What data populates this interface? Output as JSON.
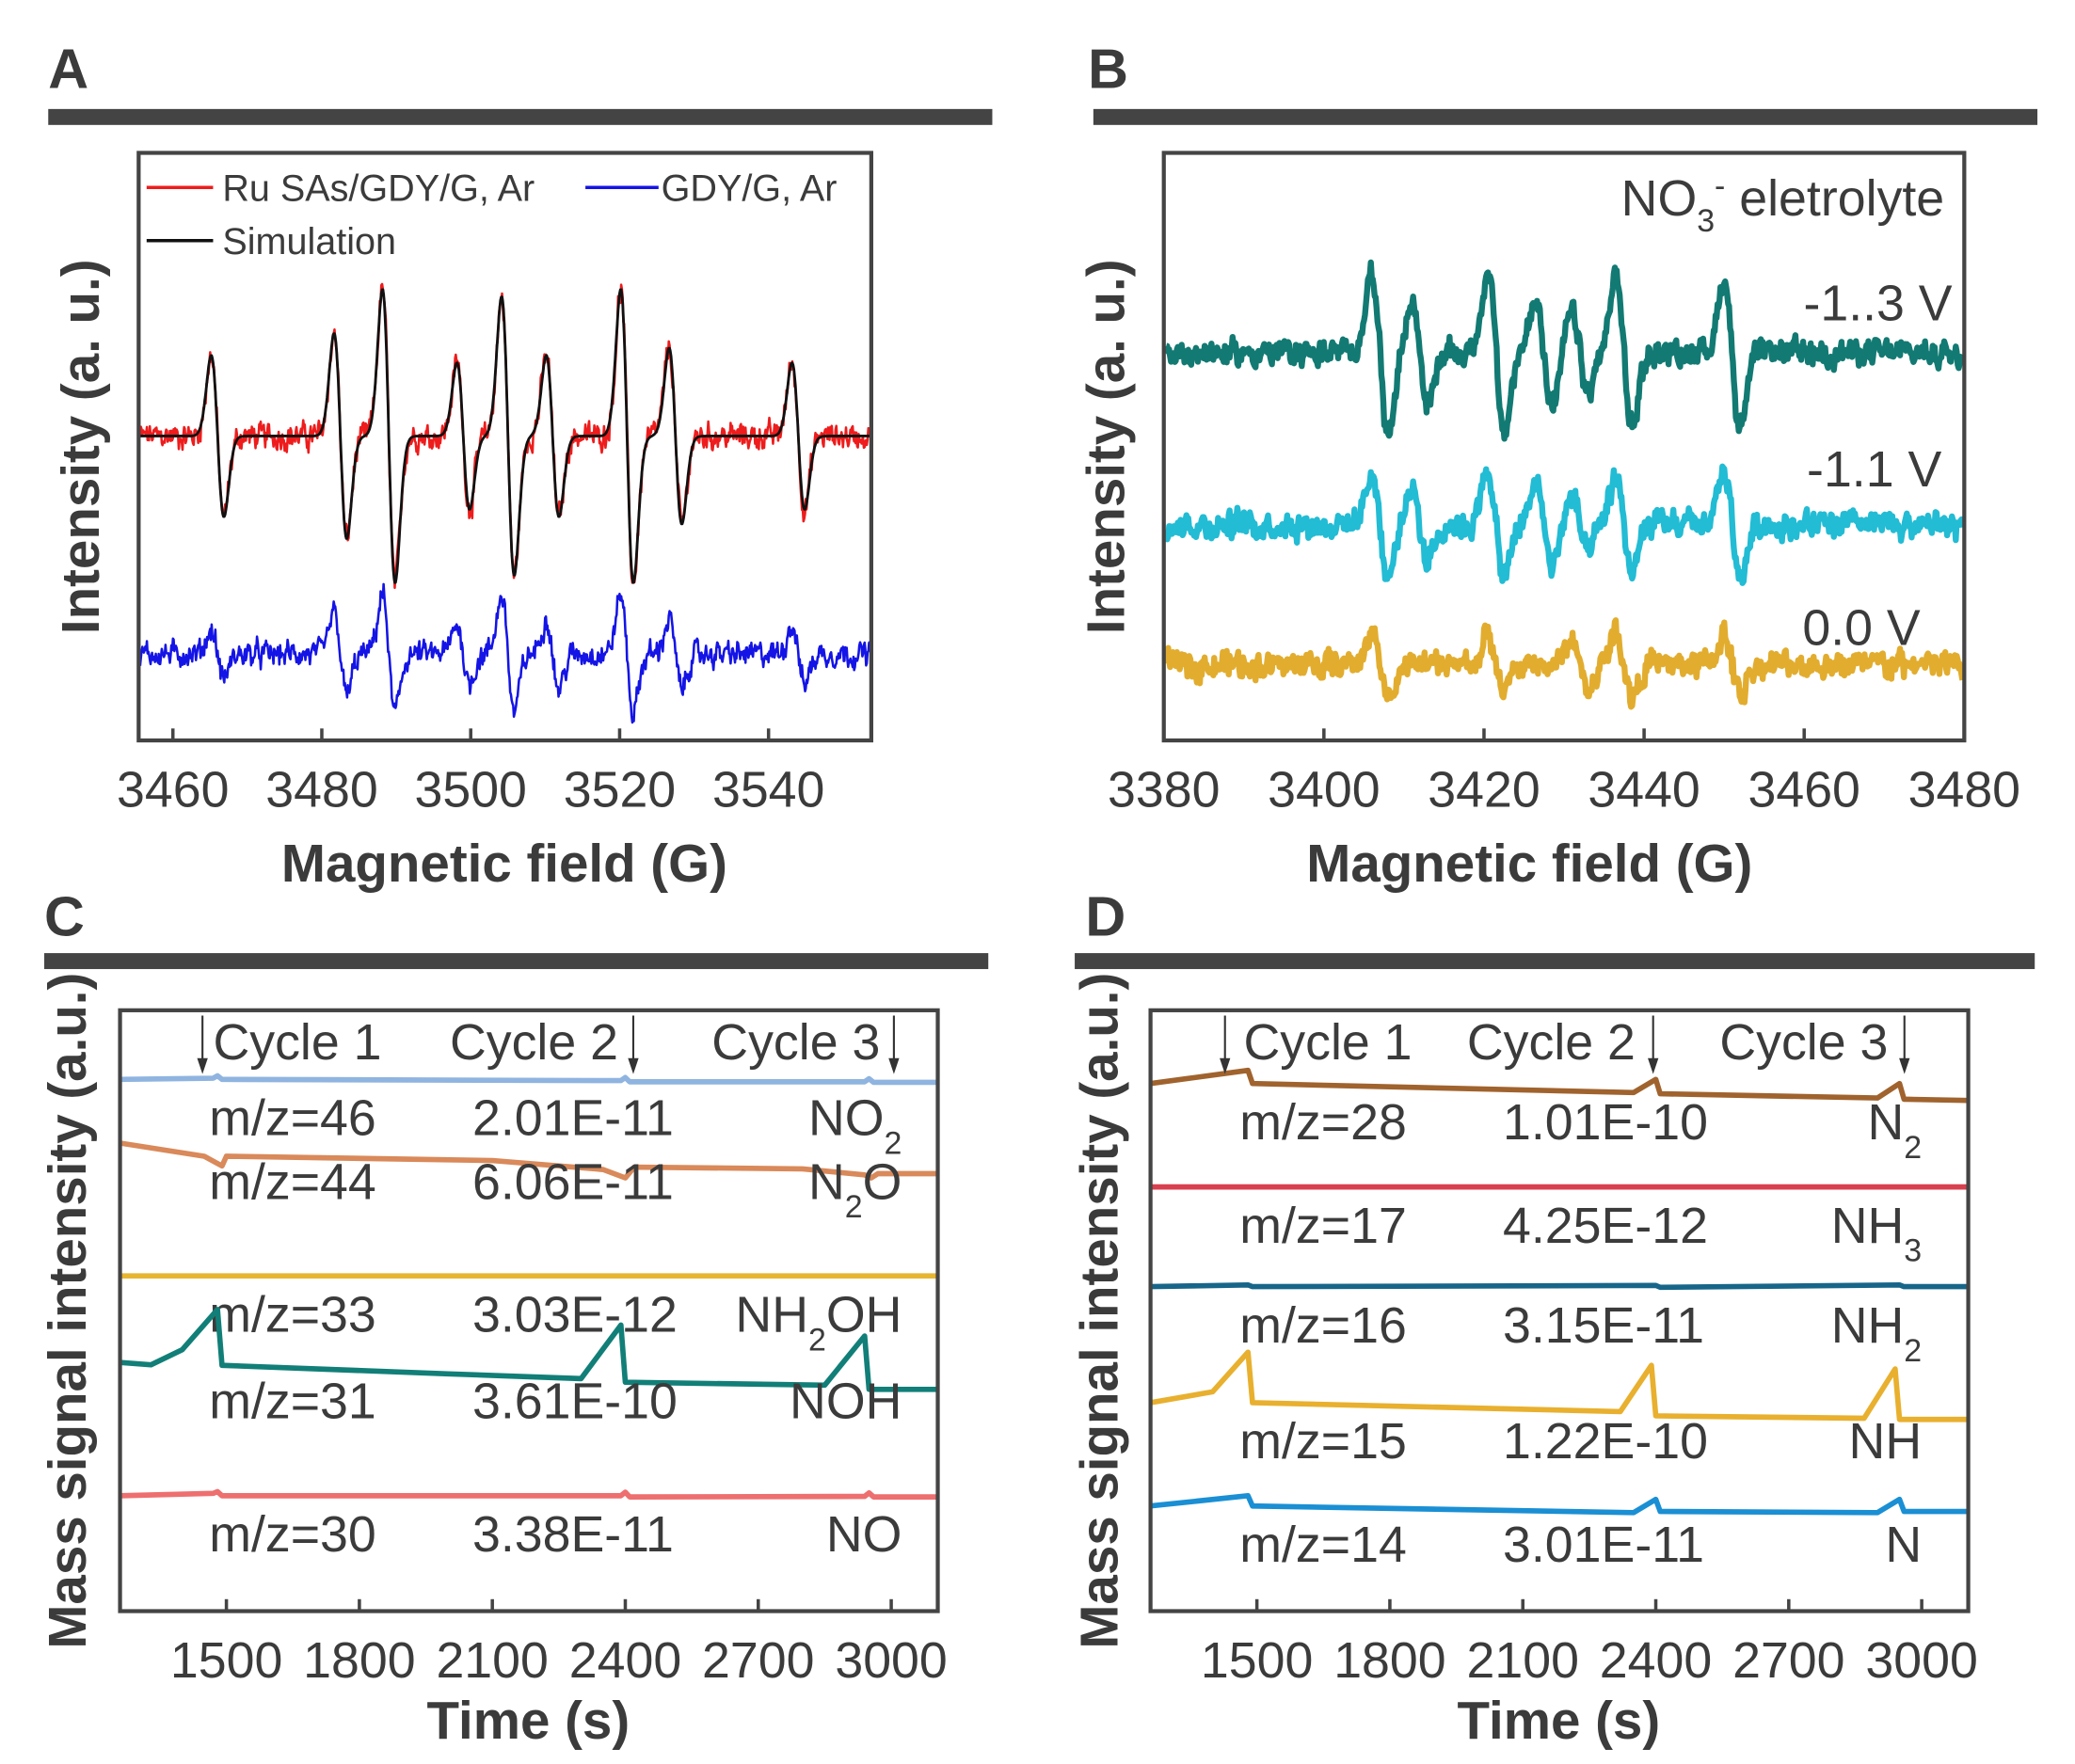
{
  "panels": {
    "A": "A",
    "B": "B",
    "C": "C",
    "D": "D"
  },
  "chart_data": [
    {
      "type": "line",
      "panel": "A",
      "xlabel": "Magnetic field (G)",
      "ylabel": "Intensity (a. u.)",
      "xlim": [
        3455.4,
        3553.8
      ],
      "ylim": [
        0,
        100
      ],
      "xticks": [
        "3460",
        "3480",
        "3500",
        "3520",
        "3540"
      ],
      "legend": [
        "Ru SAs/GDY/G, Ar",
        "GDY/G, Ar",
        "Simulation"
      ],
      "legend_position": "top",
      "series": [
        {
          "name": "Ru SAs/GDY/G, Ar",
          "color": "#ee1c1c",
          "baseline": 51.8,
          "noise": 3.2,
          "lines": [
            [
              3466,
              0.55
            ],
            [
              3482.5,
              0.7
            ],
            [
              3489,
              1.0
            ],
            [
              3499,
              0.5
            ],
            [
              3505,
              0.95
            ],
            [
              3511,
              0.55
            ],
            [
              3521,
              1.0
            ],
            [
              3527.5,
              0.6
            ],
            [
              3544,
              0.5
            ]
          ],
          "amplitude": 25
        },
        {
          "name": "GDY/G, Ar",
          "color": "#1414e6",
          "baseline": 14.7,
          "noise": 3.0,
          "lines": [
            [
              3466,
              0.4
            ],
            [
              3482.5,
              0.7
            ],
            [
              3489,
              1.0
            ],
            [
              3499,
              0.5
            ],
            [
              3505,
              1.0
            ],
            [
              3511,
              0.6
            ],
            [
              3521,
              1.0
            ],
            [
              3527.5,
              0.6
            ],
            [
              3544,
              0.5
            ]
          ],
          "amplitude": 10
        },
        {
          "name": "Simulation",
          "color": "#111111",
          "baseline": 51.8,
          "noise": 0,
          "lines": [
            [
              3466,
              0.55
            ],
            [
              3482.5,
              0.7
            ],
            [
              3489,
              1.0
            ],
            [
              3499,
              0.5
            ],
            [
              3505,
              0.95
            ],
            [
              3511,
              0.55
            ],
            [
              3521,
              1.0
            ],
            [
              3527.5,
              0.6
            ],
            [
              3544,
              0.5
            ]
          ],
          "amplitude": 25
        }
      ]
    },
    {
      "type": "line",
      "panel": "B",
      "xlabel": "Magnetic field (G)",
      "ylabel": "Intensity (a. u.)",
      "xlim": [
        3380,
        3480
      ],
      "ylim": [
        0,
        100
      ],
      "xticks": [
        "3380",
        "3400",
        "3420",
        "3440",
        "3460",
        "3480"
      ],
      "annotation": {
        "main": "NO",
        "sub": "3",
        "sup": "-",
        "rest": " eletrolyte"
      },
      "series": [
        {
          "name": "-1..3 V",
          "color": "#127a73",
          "baseline": 66,
          "noise": 3.0,
          "amplitude": 14,
          "lines": [
            [
              3407,
              1.0
            ],
            [
              3412,
              0.6
            ],
            [
              3421.5,
              1.0
            ],
            [
              3427.5,
              0.7
            ],
            [
              3432,
              0.5
            ],
            [
              3437.5,
              0.9
            ],
            [
              3451,
              0.9
            ]
          ]
        },
        {
          "name": "-1.1 V",
          "color": "#22bcd4",
          "baseline": 36.7,
          "noise": 3.2,
          "amplitude": 10,
          "lines": [
            [
              3407,
              0.9
            ],
            [
              3412,
              0.6
            ],
            [
              3421.5,
              0.9
            ],
            [
              3427.5,
              0.7
            ],
            [
              3432,
              0.5
            ],
            [
              3437.5,
              0.8
            ],
            [
              3451,
              0.9
            ]
          ]
        },
        {
          "name": "0.0 V",
          "color": "#e2ad2e",
          "baseline": 12.9,
          "noise": 3.2,
          "amplitude": 6,
          "lines": [
            [
              3407,
              0.9
            ],
            [
              3421.5,
              0.8
            ],
            [
              3432,
              0.7
            ],
            [
              3437.5,
              0.9
            ],
            [
              3451,
              0.8
            ]
          ]
        }
      ]
    },
    {
      "type": "line",
      "panel": "C",
      "xlabel": "Time (s)",
      "ylabel": "Mass signal intensity (a.u.)",
      "xlim": [
        1260,
        3105
      ],
      "ylim": [
        0,
        100
      ],
      "xticks": [
        "1500",
        "1800",
        "2100",
        "2400",
        "2700",
        "3000"
      ],
      "cycles": [
        "Cycle 1",
        "Cycle 2",
        "Cycle 3"
      ],
      "cycle_markers": [
        1446,
        2418,
        3006
      ],
      "series": [
        {
          "mz": "m/z=46",
          "value": "2.01E-11",
          "species": {
            "main": "NO",
            "sub": "2",
            "rest": ""
          },
          "color": "#8fb4e0",
          "points": [
            [
              1260,
              88.5
            ],
            [
              1470,
              88.7
            ],
            [
              1480,
              89.1
            ],
            [
              1490,
              88.5
            ],
            [
              2390,
              88.3
            ],
            [
              2400,
              88.8
            ],
            [
              2410,
              88.1
            ],
            [
              2940,
              88.1
            ],
            [
              2950,
              88.6
            ],
            [
              2960,
              88.0
            ],
            [
              3105,
              88.0
            ]
          ]
        },
        {
          "mz": "m/z=44",
          "value": "6.06E-11",
          "species": {
            "main": "N",
            "sub": "2",
            "rest": "O"
          },
          "color": "#d9895a",
          "points": [
            [
              1260,
              77.9
            ],
            [
              1450,
              75.7
            ],
            [
              1490,
              74.1
            ],
            [
              1500,
              75.7
            ],
            [
              2100,
              75.0
            ],
            [
              2350,
              73.5
            ],
            [
              2400,
              72.1
            ],
            [
              2420,
              73.9
            ],
            [
              2800,
              73.6
            ],
            [
              2940,
              72.6
            ],
            [
              2955,
              72.1
            ],
            [
              2970,
              72.8
            ],
            [
              3105,
              72.8
            ]
          ]
        },
        {
          "mz": "m/z=33",
          "value": "3.03E-12",
          "species": {
            "main": "NH",
            "sub": "2",
            "rest": "OH"
          },
          "color": "#e6b531",
          "points": [
            [
              1260,
              55.8
            ],
            [
              3105,
              55.8
            ]
          ]
        },
        {
          "mz": "m/z=31",
          "value": "3.61E-10",
          "species": {
            "main": "NOH",
            "sub": "",
            "rest": ""
          },
          "color": "#117f78",
          "points": [
            [
              1260,
              41.4
            ],
            [
              1330,
              41.0
            ],
            [
              1400,
              43.5
            ],
            [
              1480,
              50.2
            ],
            [
              1490,
              40.9
            ],
            [
              2000,
              39.5
            ],
            [
              2300,
              38.7
            ],
            [
              2390,
              47.6
            ],
            [
              2400,
              38.1
            ],
            [
              2850,
              37.6
            ],
            [
              2940,
              45.8
            ],
            [
              2950,
              36.9
            ],
            [
              3105,
              36.9
            ]
          ]
        },
        {
          "mz": "m/z=30",
          "value": "3.38E-11",
          "species": {
            "main": "NO",
            "sub": "",
            "rest": ""
          },
          "color": "#ee6f6f",
          "points": [
            [
              1260,
              19.2
            ],
            [
              1470,
              19.6
            ],
            [
              1480,
              19.9
            ],
            [
              1490,
              19.2
            ],
            [
              2390,
              19.2
            ],
            [
              2400,
              19.8
            ],
            [
              2410,
              19.0
            ],
            [
              2940,
              19.1
            ],
            [
              2950,
              19.7
            ],
            [
              2960,
              19.0
            ],
            [
              3105,
              19.0
            ]
          ]
        }
      ]
    },
    {
      "type": "line",
      "panel": "D",
      "xlabel": "Time (s)",
      "ylabel": "Mass signal intensity (a.u.)",
      "xlim": [
        1260,
        3105
      ],
      "ylim": [
        0,
        100
      ],
      "xticks": [
        "1500",
        "1800",
        "2100",
        "2400",
        "2700",
        "3000"
      ],
      "cycles": [
        "Cycle 1",
        "Cycle 2",
        "Cycle 3"
      ],
      "cycle_markers": [
        1428,
        2394,
        2961
      ],
      "series": [
        {
          "mz": "m/z=28",
          "value": "1.01E-10",
          "species": {
            "main": "N",
            "sub": "2",
            "rest": ""
          },
          "color": "#a0632e",
          "points": [
            [
              1260,
              87.8
            ],
            [
              1480,
              90.0
            ],
            [
              1490,
              87.8
            ],
            [
              2350,
              86.3
            ],
            [
              2400,
              88.5
            ],
            [
              2410,
              86.1
            ],
            [
              2900,
              85.4
            ],
            [
              2950,
              87.8
            ],
            [
              2960,
              85.2
            ],
            [
              3105,
              85.0
            ]
          ]
        },
        {
          "mz": "m/z=17",
          "value": "4.25E-12",
          "species": {
            "main": "NH",
            "sub": "3",
            "rest": ""
          },
          "color": "#d9404f",
          "points": [
            [
              1260,
              70.6
            ],
            [
              3105,
              70.6
            ]
          ]
        },
        {
          "mz": "m/z=16",
          "value": "3.15E-11",
          "species": {
            "main": "NH",
            "sub": "2",
            "rest": ""
          },
          "color": "#17668a",
          "points": [
            [
              1260,
              54.0
            ],
            [
              1480,
              54.3
            ],
            [
              1490,
              54.0
            ],
            [
              2400,
              54.2
            ],
            [
              2410,
              53.9
            ],
            [
              2950,
              54.3
            ],
            [
              2960,
              54.0
            ],
            [
              3105,
              54.0
            ]
          ]
        },
        {
          "mz": "m/z=15",
          "value": "1.22E-10",
          "species": {
            "main": "NH",
            "sub": "",
            "rest": ""
          },
          "color": "#e8b02e",
          "points": [
            [
              1260,
              34.7
            ],
            [
              1400,
              36.5
            ],
            [
              1480,
              43.1
            ],
            [
              1490,
              34.7
            ],
            [
              2320,
              33.2
            ],
            [
              2390,
              40.9
            ],
            [
              2400,
              32.5
            ],
            [
              2870,
              32.1
            ],
            [
              2940,
              40.3
            ],
            [
              2950,
              31.9
            ],
            [
              3105,
              31.9
            ]
          ]
        },
        {
          "mz": "m/z=14",
          "value": "3.01E-11",
          "species": {
            "main": "N",
            "sub": "",
            "rest": ""
          },
          "color": "#1a8fd4",
          "points": [
            [
              1260,
              17.5
            ],
            [
              1480,
              19.2
            ],
            [
              1490,
              17.5
            ],
            [
              2350,
              16.4
            ],
            [
              2400,
              18.6
            ],
            [
              2410,
              16.6
            ],
            [
              2900,
              16.4
            ],
            [
              2950,
              18.6
            ],
            [
              2960,
              16.6
            ],
            [
              3105,
              16.6
            ]
          ]
        }
      ]
    }
  ]
}
